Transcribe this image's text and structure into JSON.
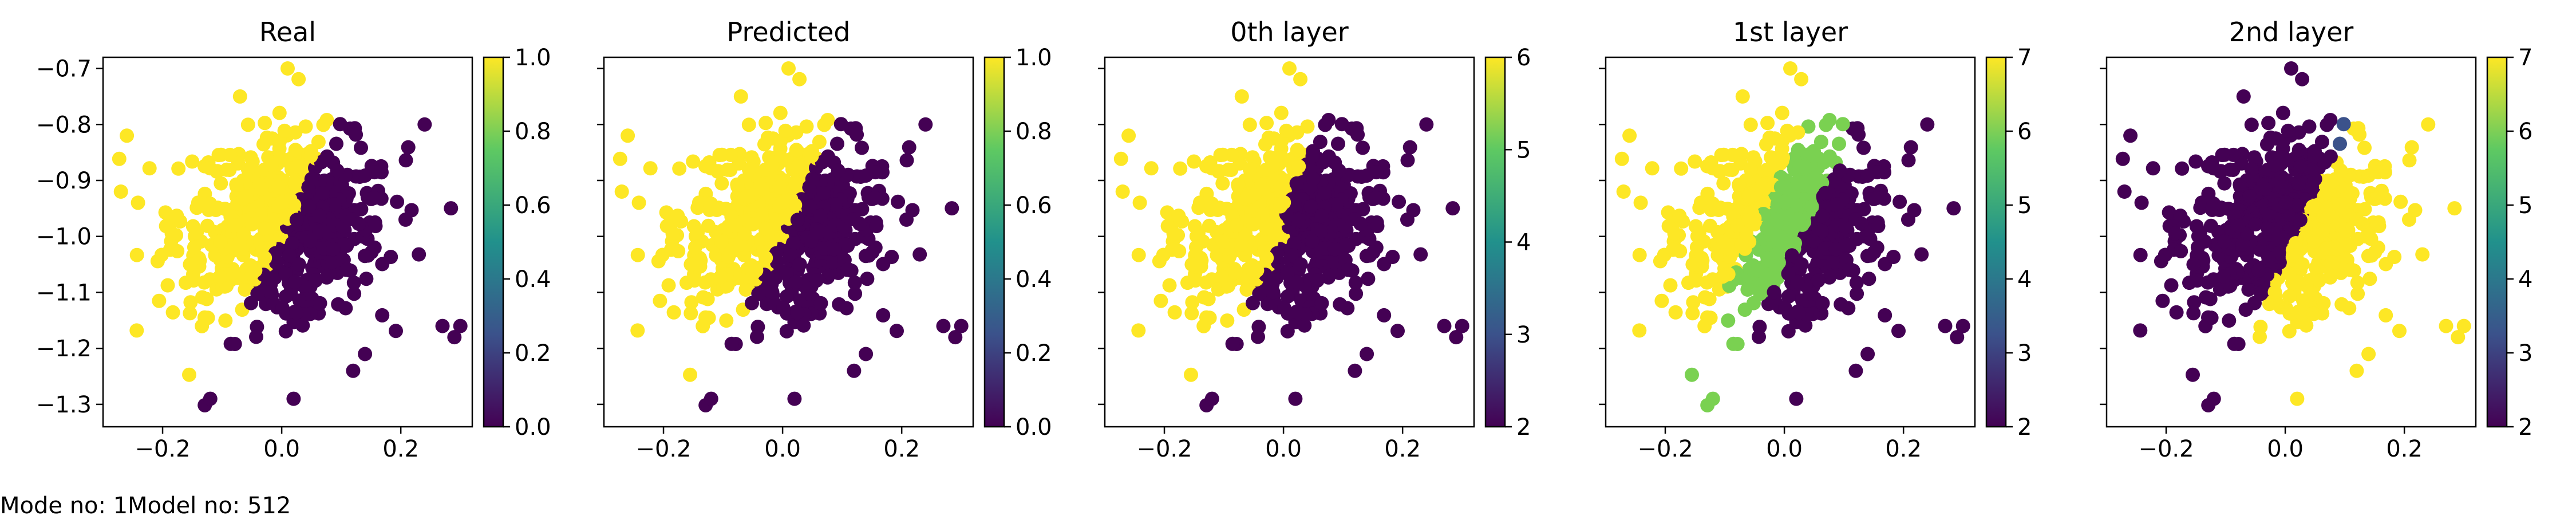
{
  "footer": {
    "mode_text": "Mode no: 1",
    "model_text": "Model no: 512"
  },
  "colors": {
    "viridis_low": "#440154",
    "viridis_high": "#fde725",
    "green": "#7ad151",
    "blue": "#3b528b"
  },
  "chart_data": [
    {
      "type": "scatter",
      "title": "Real",
      "xlabel": "",
      "ylabel": "",
      "xlim": [
        -0.3,
        0.32
      ],
      "ylim": [
        -1.34,
        -0.68
      ],
      "x_ticks": [
        -0.2,
        0.0,
        0.2
      ],
      "y_ticks": [
        -0.7,
        -0.8,
        -0.9,
        -1.0,
        -1.1,
        -1.2,
        -1.3
      ],
      "colorbar": {
        "range": [
          0.0,
          1.0
        ],
        "ticks": [
          "1.0",
          "0.8",
          "0.6",
          "0.4",
          "0.2",
          "0.0"
        ]
      },
      "grid": false,
      "classes": [
        {
          "value": 1,
          "color": "#fde725",
          "region": "left of diagonal boundary"
        },
        {
          "value": 0,
          "color": "#440154",
          "region": "right of diagonal boundary"
        }
      ]
    },
    {
      "type": "scatter",
      "title": "Predicted",
      "xlabel": "",
      "ylabel": "",
      "xlim": [
        -0.3,
        0.32
      ],
      "ylim": [
        -1.34,
        -0.68
      ],
      "x_ticks": [
        -0.2,
        0.0,
        0.2
      ],
      "colorbar": {
        "range": [
          0.0,
          1.0
        ],
        "ticks": [
          "1.0",
          "0.8",
          "0.6",
          "0.4",
          "0.2",
          "0.0"
        ]
      },
      "grid": false,
      "classes": [
        {
          "value": 1,
          "color": "#fde725"
        },
        {
          "value": 0,
          "color": "#440154"
        }
      ]
    },
    {
      "type": "scatter",
      "title": "0th layer",
      "xlabel": "",
      "ylabel": "",
      "xlim": [
        -0.3,
        0.32
      ],
      "ylim": [
        -1.34,
        -0.68
      ],
      "x_ticks": [
        -0.2,
        0.0,
        0.2
      ],
      "colorbar": {
        "range": [
          2,
          6
        ],
        "ticks": [
          "6",
          "5",
          "4",
          "3",
          "2"
        ]
      },
      "grid": false,
      "classes": [
        {
          "value": 6,
          "color": "#fde725"
        },
        {
          "value": 2,
          "color": "#440154"
        }
      ]
    },
    {
      "type": "scatter",
      "title": "1st layer",
      "xlabel": "",
      "ylabel": "",
      "xlim": [
        -0.3,
        0.32
      ],
      "ylim": [
        -1.34,
        -0.68
      ],
      "x_ticks": [
        -0.2,
        0.0,
        0.2
      ],
      "colorbar": {
        "range": [
          2,
          7
        ],
        "ticks": [
          "7",
          "6",
          "5",
          "4",
          "3",
          "2"
        ]
      },
      "grid": false,
      "classes": [
        {
          "value": 7,
          "color": "#fde725"
        },
        {
          "value": 6,
          "color": "#7ad151"
        },
        {
          "value": 2,
          "color": "#440154"
        }
      ]
    },
    {
      "type": "scatter",
      "title": "2nd layer",
      "xlabel": "",
      "ylabel": "",
      "xlim": [
        -0.3,
        0.32
      ],
      "ylim": [
        -1.34,
        -0.68
      ],
      "x_ticks": [
        -0.2,
        0.0,
        0.2
      ],
      "colorbar": {
        "range": [
          2,
          7
        ],
        "ticks": [
          "7",
          "6",
          "5",
          "4",
          "3",
          "2"
        ]
      },
      "grid": false,
      "classes": [
        {
          "value": 2,
          "color": "#440154"
        },
        {
          "value": 3,
          "color": "#3b528b"
        },
        {
          "value": 7,
          "color": "#fde725"
        }
      ]
    }
  ]
}
